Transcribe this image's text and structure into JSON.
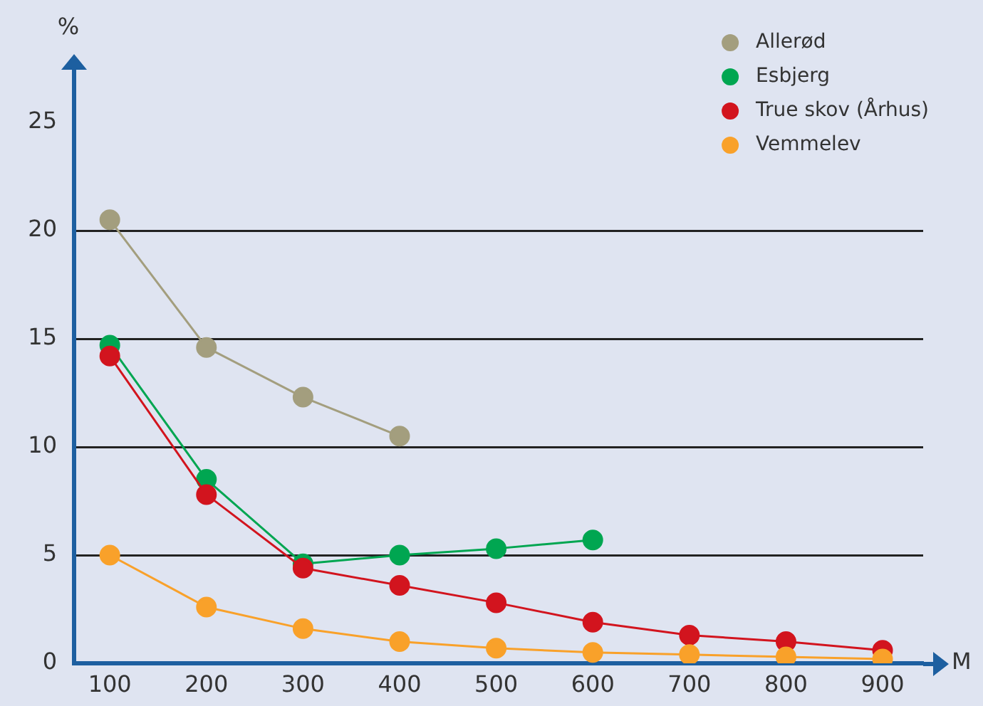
{
  "chart_data": {
    "type": "line",
    "ylabel": "%",
    "xlabel": "M",
    "x": [
      100,
      200,
      300,
      400,
      500,
      600,
      700,
      800,
      900
    ],
    "series": [
      {
        "name": "Allerød",
        "color": "#a39e7e",
        "values": [
          20.5,
          14.6,
          12.3,
          10.5,
          null,
          null,
          null,
          null,
          null
        ]
      },
      {
        "name": "Esbjerg",
        "color": "#00a651",
        "values": [
          14.7,
          8.5,
          4.6,
          5.0,
          5.3,
          5.7,
          null,
          null,
          null
        ]
      },
      {
        "name": "True skov (Århus)",
        "color": "#d2141e",
        "values": [
          14.2,
          7.8,
          4.4,
          3.6,
          2.8,
          1.9,
          1.3,
          1.0,
          0.6
        ]
      },
      {
        "name": "Vemmelev",
        "color": "#f9a12a",
        "values": [
          5.0,
          2.6,
          1.6,
          1.0,
          0.7,
          0.5,
          0.4,
          0.3,
          0.2
        ]
      }
    ],
    "xlim": [
      63,
      942
    ],
    "xticks": [
      100,
      200,
      300,
      400,
      500,
      600,
      700,
      800,
      900
    ],
    "ylim": [
      0,
      27.5
    ],
    "yticks": [
      0,
      5,
      10,
      15,
      20,
      25
    ],
    "grid": "y",
    "legend": "top right",
    "marker": "circle",
    "line_style": "solid"
  }
}
